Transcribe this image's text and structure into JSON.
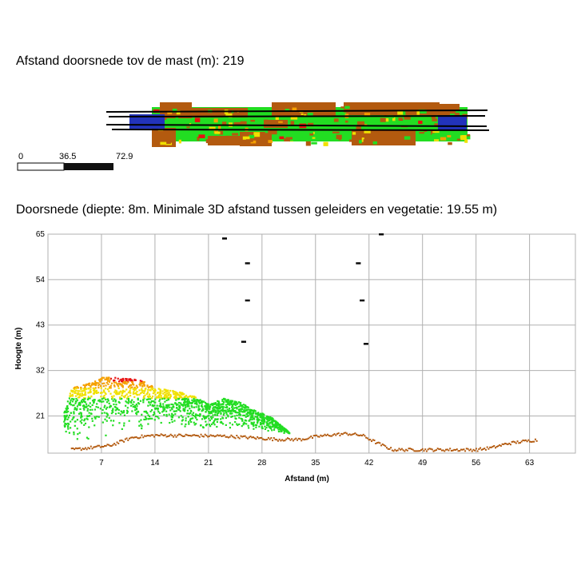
{
  "plan": {
    "title": "Afstand doorsnede tov de mast (m): 219",
    "scale_labels": [
      "0",
      "36.5",
      "72.9"
    ]
  },
  "section": {
    "title": "Doorsnede (diepte: 8m. Minimale 3D afstand tussen geleiders en vegetatie: 19.55 m)"
  },
  "colors": {
    "ground": "#b35a0f",
    "veg_low": "#22dd22",
    "veg_mid": "#f0e000",
    "veg_high": "#f5a000",
    "veg_critical": "#e81010",
    "conductor": "#000000",
    "mast": "#2233bb",
    "grid": "#b0b0b0"
  },
  "chart_data": {
    "type": "scatter",
    "title": "Doorsnede (diepte: 8m. Minimale 3D afstand tussen geleiders en vegetatie: 19.55 m)",
    "xlabel": "Afstand (m)",
    "ylabel": "Hoogte (m)",
    "xlim": [
      0,
      69
    ],
    "ylim": [
      12,
      65
    ],
    "x_ticks": [
      7,
      14,
      21,
      28,
      35,
      42,
      49,
      56,
      63
    ],
    "x_tick_labels": [
      "7",
      "14",
      "21",
      "28",
      "35",
      "42",
      "49",
      "56",
      "63"
    ],
    "y_ticks": [
      21,
      32,
      43,
      54,
      65
    ],
    "y_tick_labels": [
      "21",
      "32",
      "43",
      "54",
      "65"
    ],
    "grid": true,
    "series": [
      {
        "name": "conductors",
        "color": "#000000",
        "points": [
          [
            23,
            64
          ],
          [
            26,
            58
          ],
          [
            26,
            49
          ],
          [
            25.5,
            39
          ],
          [
            40.5,
            58
          ],
          [
            41,
            49
          ],
          [
            41.5,
            38.5
          ],
          [
            43.5,
            65
          ]
        ]
      },
      {
        "name": "ground",
        "color": "#b35a0f",
        "profile": [
          [
            3,
            13
          ],
          [
            8,
            14
          ],
          [
            11,
            16
          ],
          [
            14,
            16.5
          ],
          [
            20,
            16.4
          ],
          [
            23,
            16.3
          ],
          [
            26,
            16
          ],
          [
            30,
            15.5
          ],
          [
            33,
            15.5
          ],
          [
            35,
            16.2
          ],
          [
            37,
            16.6
          ],
          [
            39,
            16.9
          ],
          [
            41,
            16.5
          ],
          [
            43,
            14.6
          ],
          [
            45,
            13
          ],
          [
            50,
            13
          ],
          [
            56,
            13
          ],
          [
            58,
            13.5
          ],
          [
            60,
            14.5
          ],
          [
            62,
            15
          ],
          [
            64,
            15.4
          ]
        ]
      },
      {
        "name": "vegetation",
        "colors_by_height": [
          "#22dd22",
          "#f0e000",
          "#f5a000",
          "#e81010"
        ],
        "canopy": [
          [
            2,
            22
          ],
          [
            3,
            28
          ],
          [
            5,
            29
          ],
          [
            7,
            30.5
          ],
          [
            9,
            30.5
          ],
          [
            12,
            30
          ],
          [
            14,
            28
          ],
          [
            16,
            27.5
          ],
          [
            19,
            26
          ],
          [
            21,
            24
          ],
          [
            23,
            25.5
          ],
          [
            25,
            24.5
          ],
          [
            27,
            22.5
          ],
          [
            29,
            21
          ],
          [
            31,
            18
          ],
          [
            32,
            16
          ]
        ]
      }
    ]
  }
}
